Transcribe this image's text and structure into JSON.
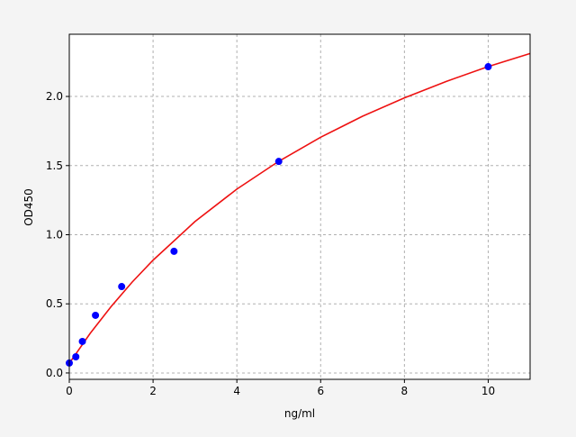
{
  "chart_data": {
    "type": "scatter",
    "title": "",
    "xlabel": "ng/ml",
    "ylabel": "OD450",
    "xlim": [
      0,
      11
    ],
    "ylim": [
      -0.046,
      2.45
    ],
    "xticks": [
      "0",
      "2",
      "4",
      "6",
      "8",
      "10"
    ],
    "yticks": [
      "0.0",
      "0.5",
      "1.0",
      "1.5",
      "2.0"
    ],
    "grid": true,
    "series": [
      {
        "type": "scatter",
        "color": "#0000ff",
        "x": [
          0,
          0.156,
          0.3125,
          0.625,
          1.25,
          2.5,
          5,
          10
        ],
        "y": [
          0.072,
          0.117,
          0.228,
          0.417,
          0.625,
          0.88,
          1.53,
          2.215
        ]
      },
      {
        "type": "line",
        "color": "#ee1111",
        "x": [
          0,
          0.5,
          1,
          1.5,
          2,
          3,
          4,
          5,
          6,
          7,
          8,
          9,
          10,
          11
        ],
        "y": [
          0.07,
          0.287,
          0.481,
          0.657,
          0.816,
          1.095,
          1.33,
          1.531,
          1.705,
          1.857,
          1.99,
          2.109,
          2.216,
          2.311
        ]
      }
    ]
  }
}
